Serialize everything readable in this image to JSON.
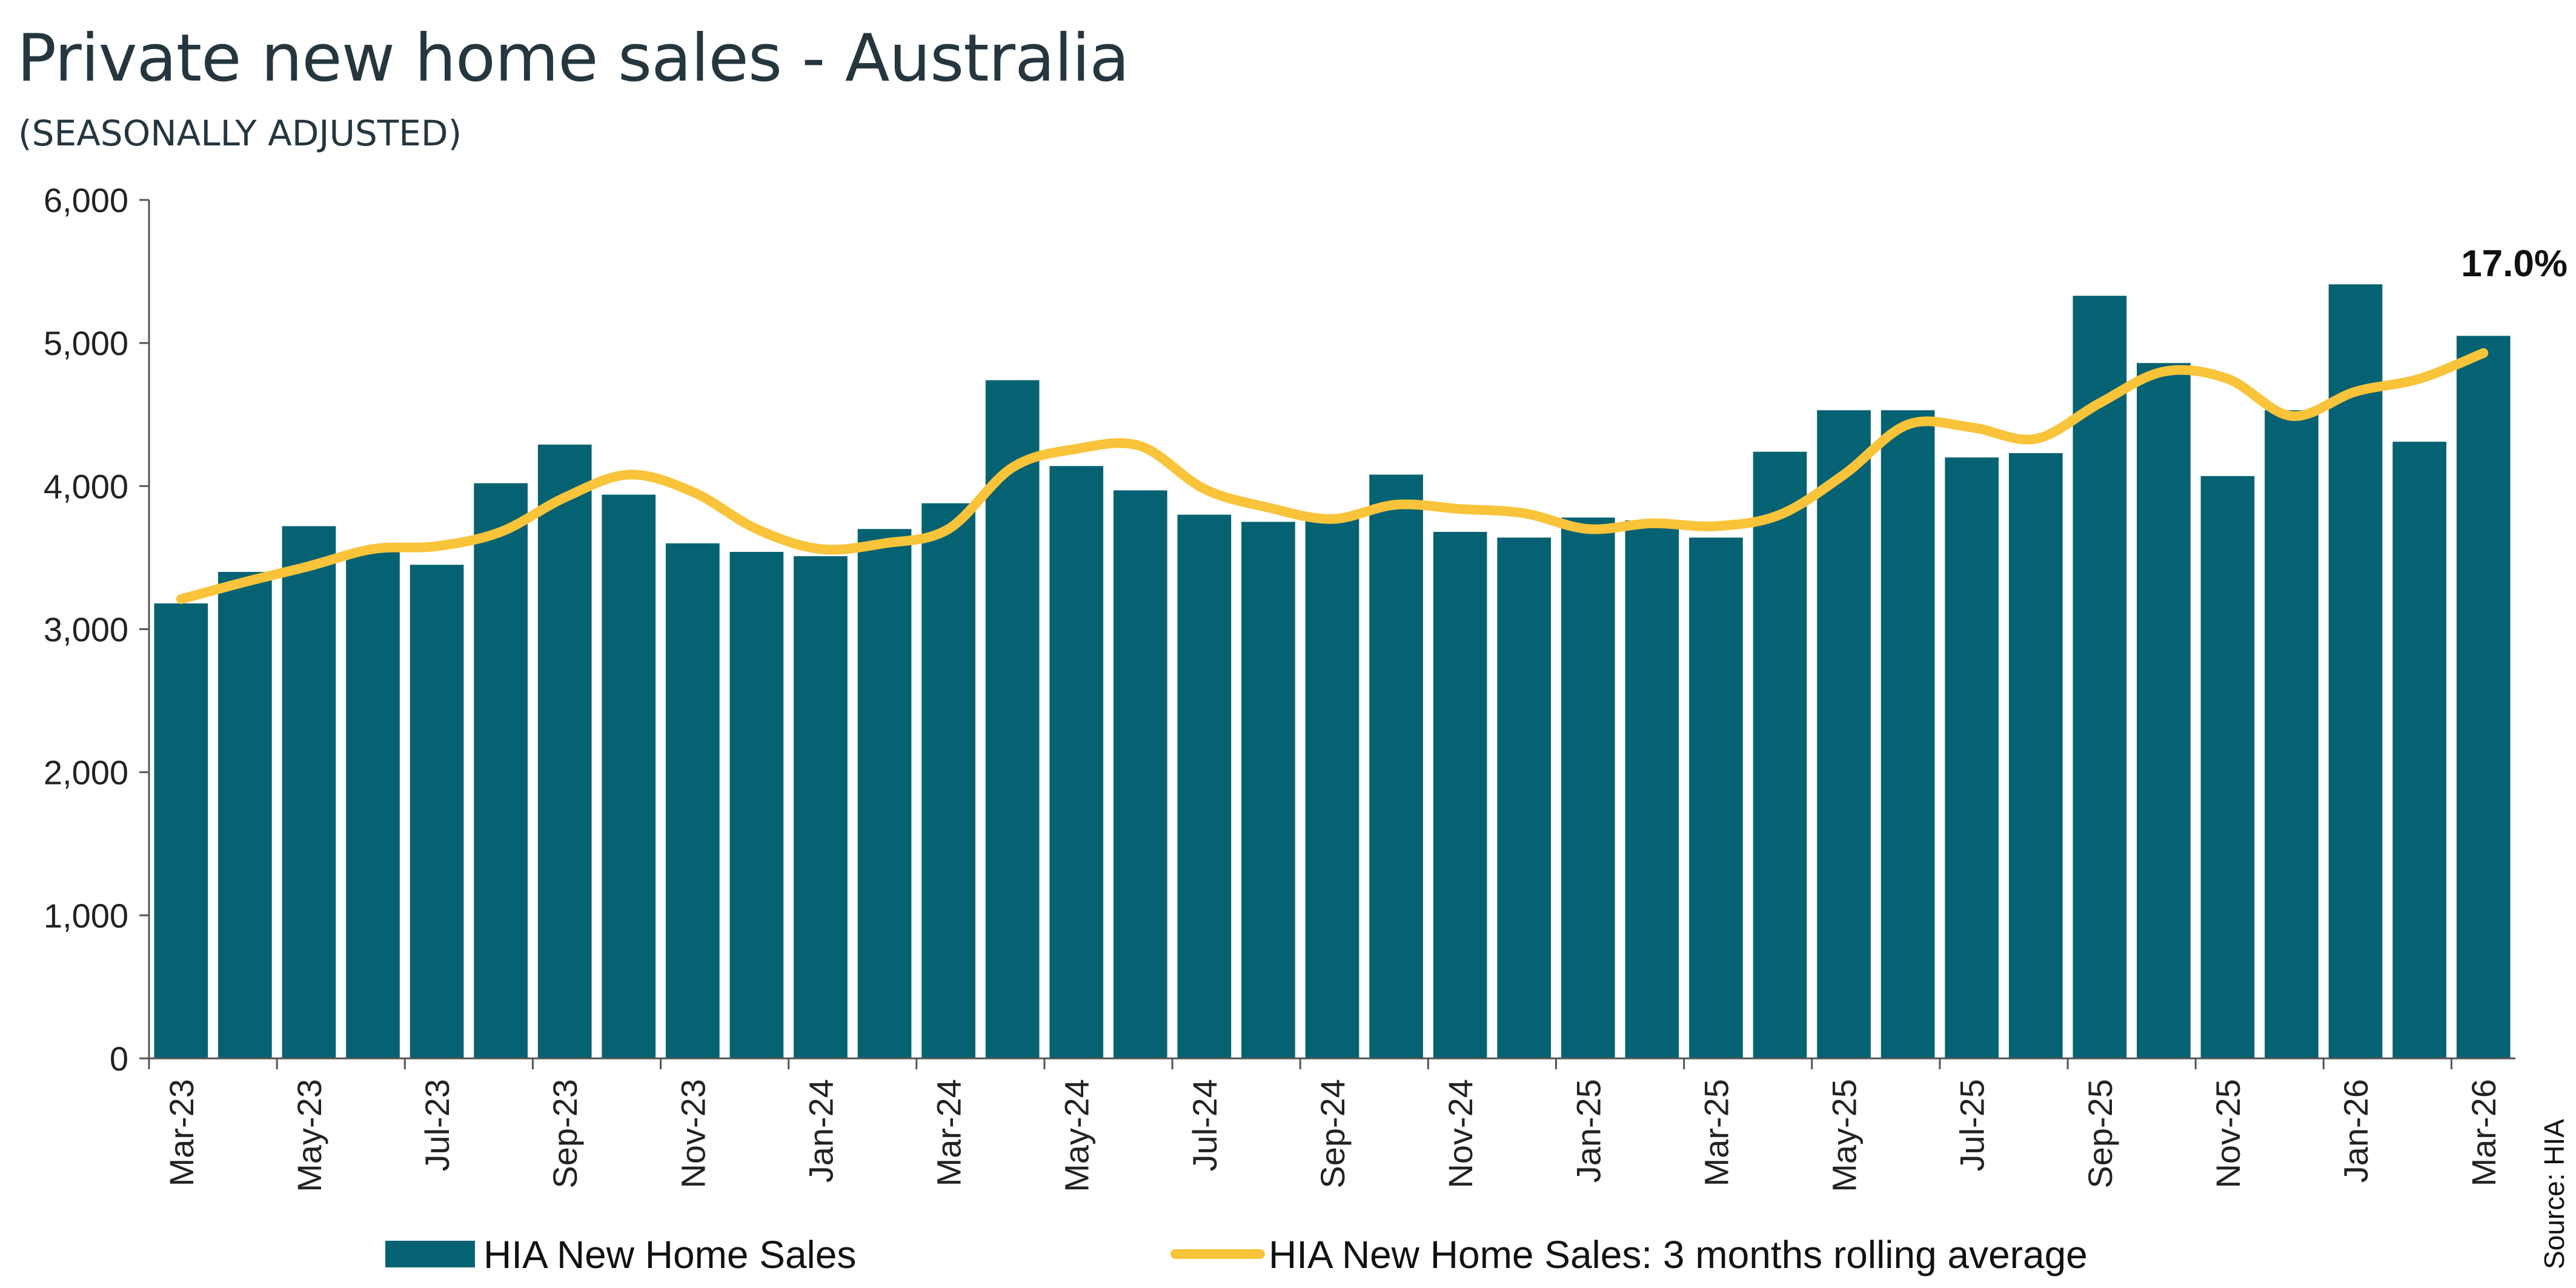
{
  "title": "Private new home sales - Australia",
  "subtitle": "(SEASONALLY ADJUSTED)",
  "source": "Source: HIA",
  "colors": {
    "bar": "#056273",
    "line": "#f9c33a",
    "axis": "#555555",
    "text": "#25363f"
  },
  "chart_data": {
    "type": "bar",
    "title": "Private new home sales - Australia",
    "subtitle": "(SEASONALLY ADJUSTED)",
    "ylim": [
      0,
      6000
    ],
    "yticks": [
      "0",
      "1,000",
      "2,000",
      "3,000",
      "4,000",
      "5,000",
      "6,000"
    ],
    "categories": [
      "Mar-23",
      "Apr-23",
      "May-23",
      "Jun-23",
      "Jul-23",
      "Aug-23",
      "Sep-23",
      "Oct-23",
      "Nov-23",
      "Dec-23",
      "Jan-24",
      "Feb-24",
      "Mar-24",
      "Apr-24",
      "May-24",
      "Jun-24",
      "Jul-24",
      "Aug-24",
      "Sep-24",
      "Oct-24",
      "Nov-24",
      "Dec-24",
      "Jan-25",
      "Feb-25",
      "Mar-25",
      "Apr-25",
      "May-25",
      "Jun-25",
      "Jul-25",
      "Aug-25",
      "Sep-25",
      "Oct-25",
      "Nov-25",
      "Dec-25",
      "Jan-26",
      "Feb-26",
      "Mar-26"
    ],
    "x_tick_labels": [
      "Mar-23",
      "May-23",
      "Jul-23",
      "Sep-23",
      "Nov-23",
      "Jan-24",
      "Mar-24",
      "May-24",
      "Jul-24",
      "Sep-24",
      "Nov-24",
      "Jan-25",
      "Mar-25",
      "May-25",
      "Jul-25",
      "Sep-25",
      "Nov-25",
      "Jan-26",
      "Mar-26"
    ],
    "series": [
      {
        "name": "HIA New Home Sales",
        "type": "bar",
        "values": [
          3180,
          3400,
          3720,
          3550,
          3450,
          4020,
          4290,
          3940,
          3600,
          3540,
          3510,
          3700,
          3880,
          4740,
          4140,
          3970,
          3800,
          3750,
          3770,
          4080,
          3680,
          3640,
          3780,
          3760,
          3640,
          4240,
          4530,
          4530,
          4200,
          4230,
          5330,
          4860,
          4070,
          4530,
          5410,
          4310,
          5050
        ]
      },
      {
        "name": "HIA New Home Sales: 3 months rolling average",
        "type": "line",
        "values": [
          3210,
          3330,
          3440,
          3560,
          3580,
          3680,
          3920,
          4080,
          3960,
          3700,
          3560,
          3600,
          3700,
          4130,
          4260,
          4280,
          3980,
          3850,
          3770,
          3870,
          3840,
          3810,
          3700,
          3740,
          3720,
          3800,
          4080,
          4430,
          4410,
          4330,
          4580,
          4800,
          4750,
          4490,
          4660,
          4750,
          4930
        ]
      }
    ],
    "annotations": [
      {
        "text": "17.0%",
        "target": "Mar-26"
      }
    ],
    "legend": {
      "position": "bottom",
      "entries": [
        "HIA New Home Sales",
        "HIA New Home Sales: 3 months rolling average"
      ]
    },
    "grid": false
  }
}
